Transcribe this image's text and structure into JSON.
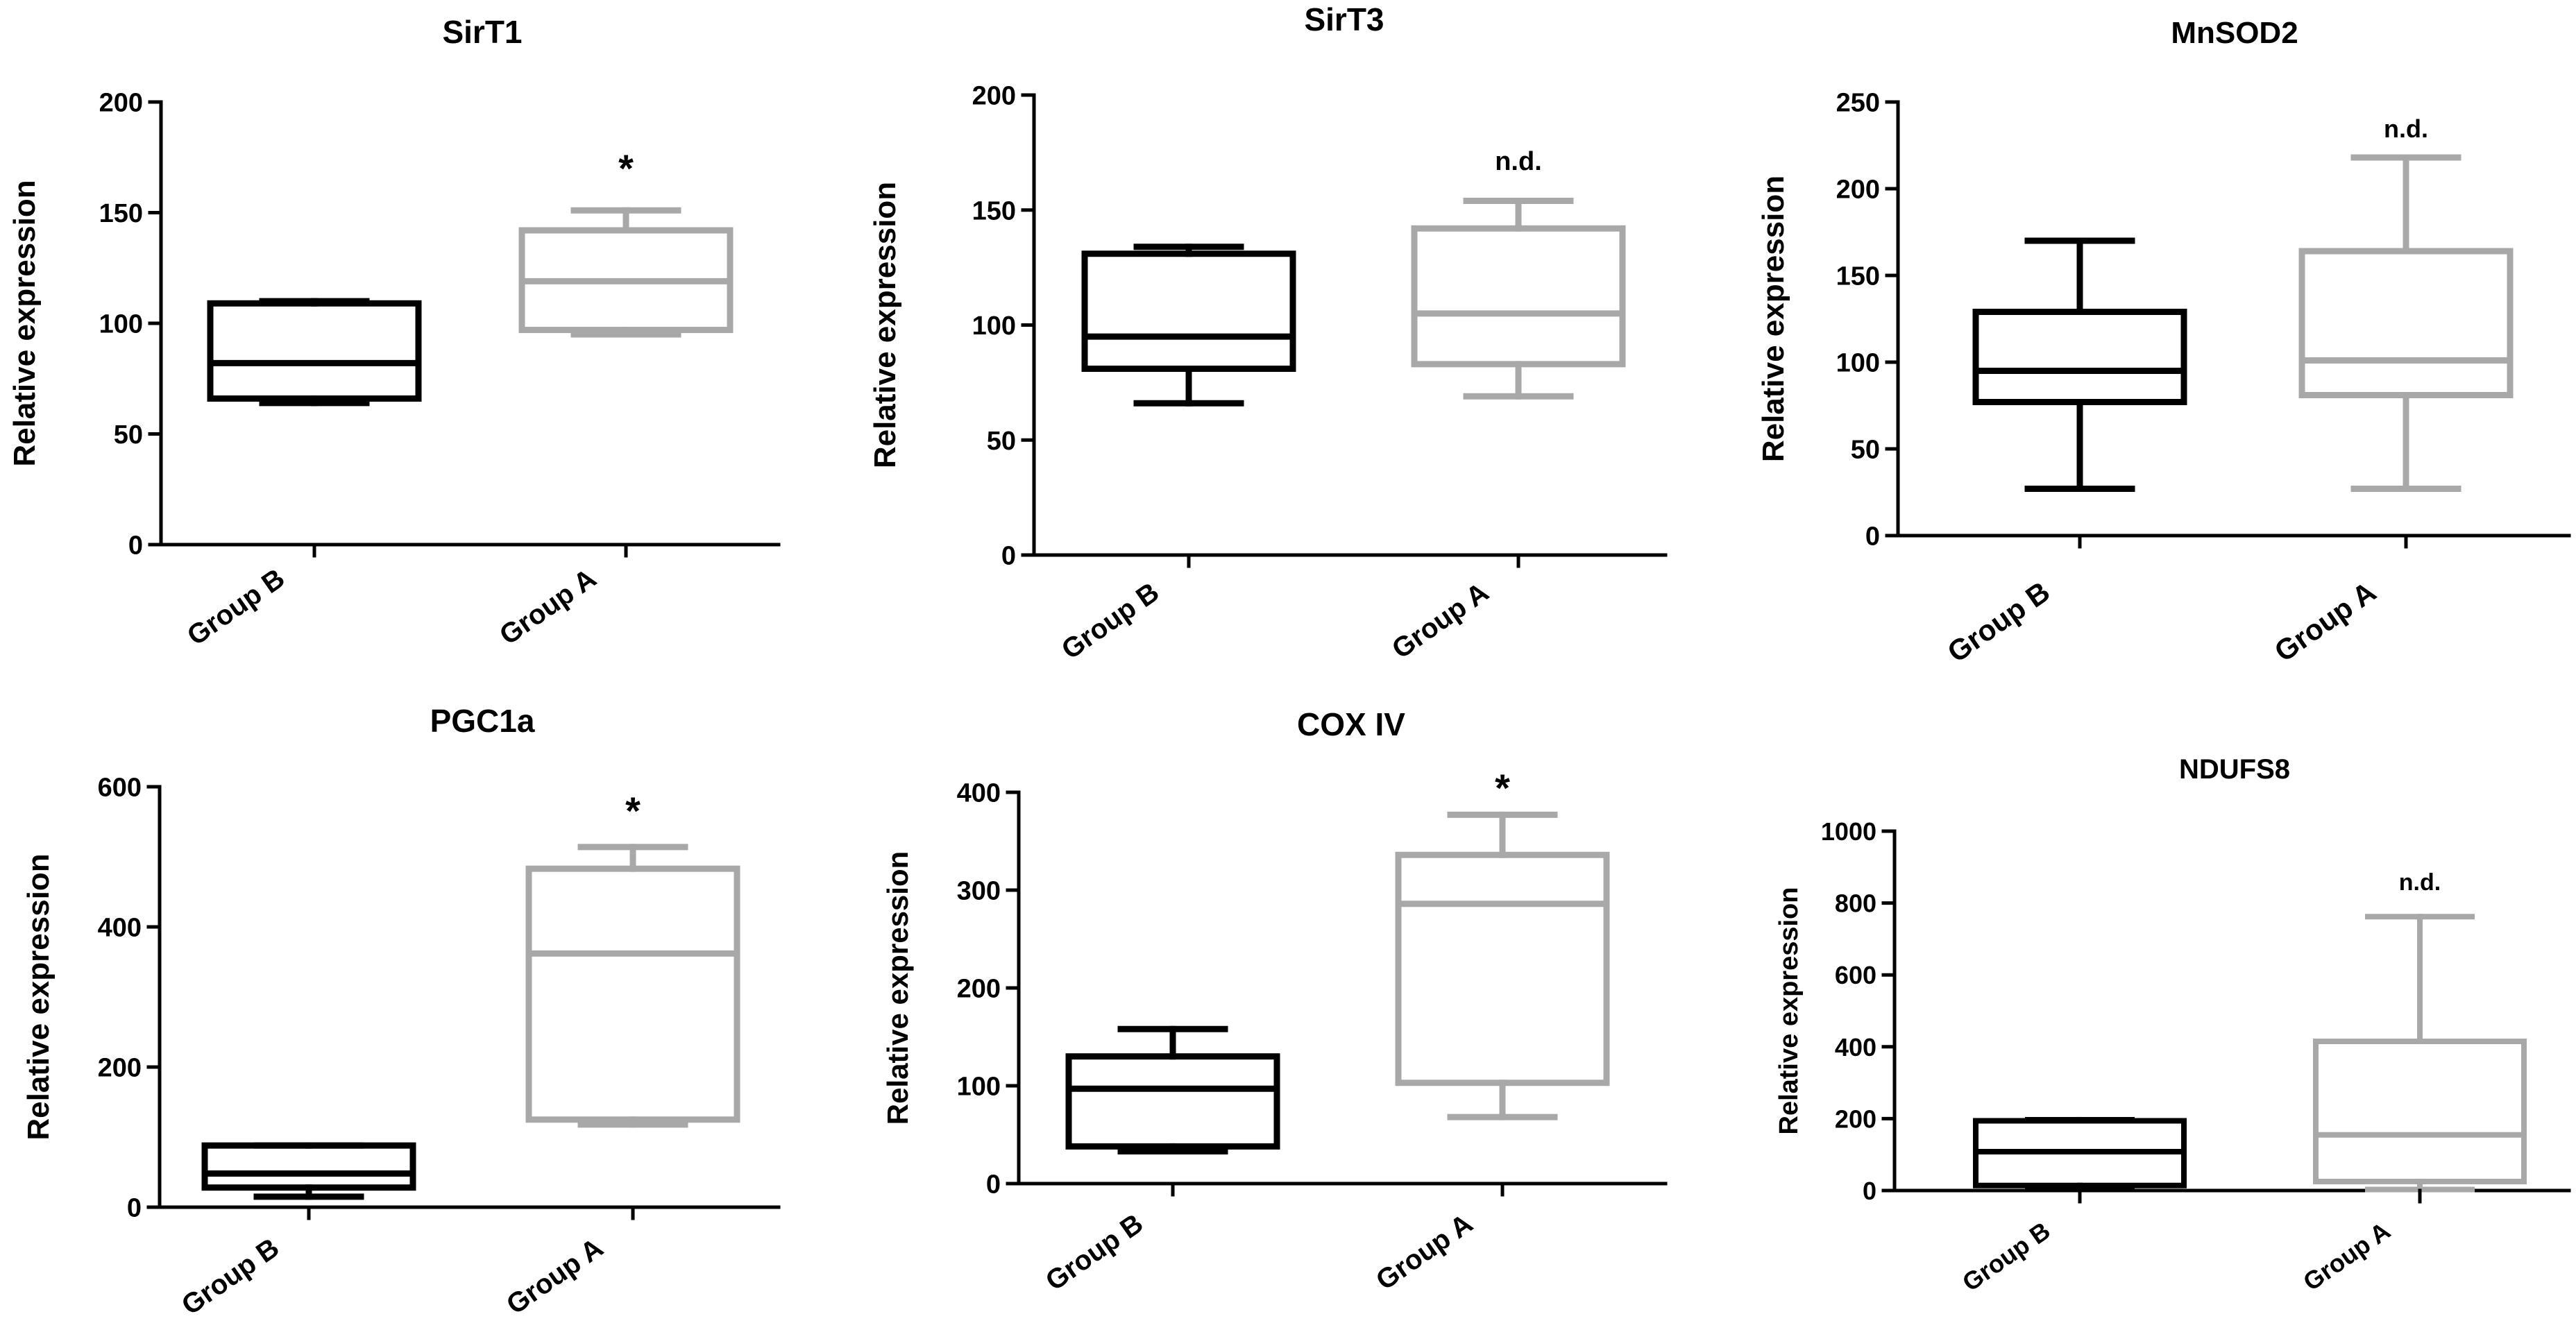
{
  "figure": {
    "panel_count": 6
  },
  "colors": {
    "group_b": "#000000",
    "group_a": "#a8a8a8",
    "axis": "#000000",
    "text": "#000000"
  },
  "chart_data": [
    {
      "type": "boxplot",
      "title": "SirT1",
      "ylabel": "Relative expression",
      "xlabel": "",
      "ylim": [
        0,
        200
      ],
      "yticks": [
        0,
        50,
        100,
        150,
        200
      ],
      "categories": [
        "Group B",
        "Group A"
      ],
      "series": [
        {
          "name": "Group B",
          "min": 64,
          "q1": 66,
          "median": 82,
          "q3": 109,
          "max": 110
        },
        {
          "name": "Group A",
          "min": 95,
          "q1": 97,
          "median": 119,
          "q3": 142,
          "max": 151
        }
      ],
      "annotation": "*"
    },
    {
      "type": "boxplot",
      "title": "SirT3",
      "ylabel": "Relative expression",
      "xlabel": "",
      "ylim": [
        0,
        200
      ],
      "yticks": [
        0,
        50,
        100,
        150,
        200
      ],
      "categories": [
        "Group B",
        "Group A"
      ],
      "series": [
        {
          "name": "Group B",
          "min": 66,
          "q1": 81,
          "median": 95,
          "q3": 131,
          "max": 134
        },
        {
          "name": "Group A",
          "min": 69,
          "q1": 83,
          "median": 105,
          "q3": 142,
          "max": 154
        }
      ],
      "annotation": "n.d."
    },
    {
      "type": "boxplot",
      "title": "MnSOD2",
      "ylabel": "Relative expression",
      "xlabel": "",
      "ylim": [
        0,
        250
      ],
      "yticks": [
        0,
        50,
        100,
        150,
        200,
        250
      ],
      "categories": [
        "Group B",
        "Group A"
      ],
      "series": [
        {
          "name": "Group B",
          "min": 27,
          "q1": 77,
          "median": 95,
          "q3": 129,
          "max": 170
        },
        {
          "name": "Group A",
          "min": 27,
          "q1": 81,
          "median": 101,
          "q3": 164,
          "max": 218
        }
      ],
      "annotation": "n.d."
    },
    {
      "type": "boxplot",
      "title": "PGC1a",
      "ylabel": "Relative expression",
      "xlabel": "",
      "ylim": [
        0,
        600
      ],
      "yticks": [
        0,
        200,
        400,
        600
      ],
      "categories": [
        "Group B",
        "Group A"
      ],
      "series": [
        {
          "name": "Group B",
          "min": 15,
          "q1": 28,
          "median": 48,
          "q3": 88,
          "max": 88
        },
        {
          "name": "Group A",
          "min": 118,
          "q1": 125,
          "median": 362,
          "q3": 483,
          "max": 514
        }
      ],
      "annotation": "*"
    },
    {
      "type": "boxplot",
      "title": "COX IV",
      "ylabel": "Relative expression",
      "xlabel": "",
      "ylim": [
        0,
        400
      ],
      "yticks": [
        0,
        100,
        200,
        300,
        400
      ],
      "categories": [
        "Group B",
        "Group A"
      ],
      "series": [
        {
          "name": "Group B",
          "min": 33,
          "q1": 38,
          "median": 97,
          "q3": 130,
          "max": 158
        },
        {
          "name": "Group A",
          "min": 68,
          "q1": 103,
          "median": 286,
          "q3": 336,
          "max": 377
        }
      ],
      "annotation": "*"
    },
    {
      "type": "boxplot",
      "title": "NDUFS8",
      "ylabel": "Relative expression",
      "xlabel": "",
      "ylim": [
        0,
        1000
      ],
      "yticks": [
        0,
        200,
        400,
        600,
        800,
        1000
      ],
      "categories": [
        "Group B",
        "Group A"
      ],
      "series": [
        {
          "name": "Group B",
          "min": 5,
          "q1": 14,
          "median": 108,
          "q3": 194,
          "max": 197
        },
        {
          "name": "Group A",
          "min": 3,
          "q1": 25,
          "median": 155,
          "q3": 415,
          "max": 762
        }
      ],
      "annotation": "n.d."
    }
  ]
}
